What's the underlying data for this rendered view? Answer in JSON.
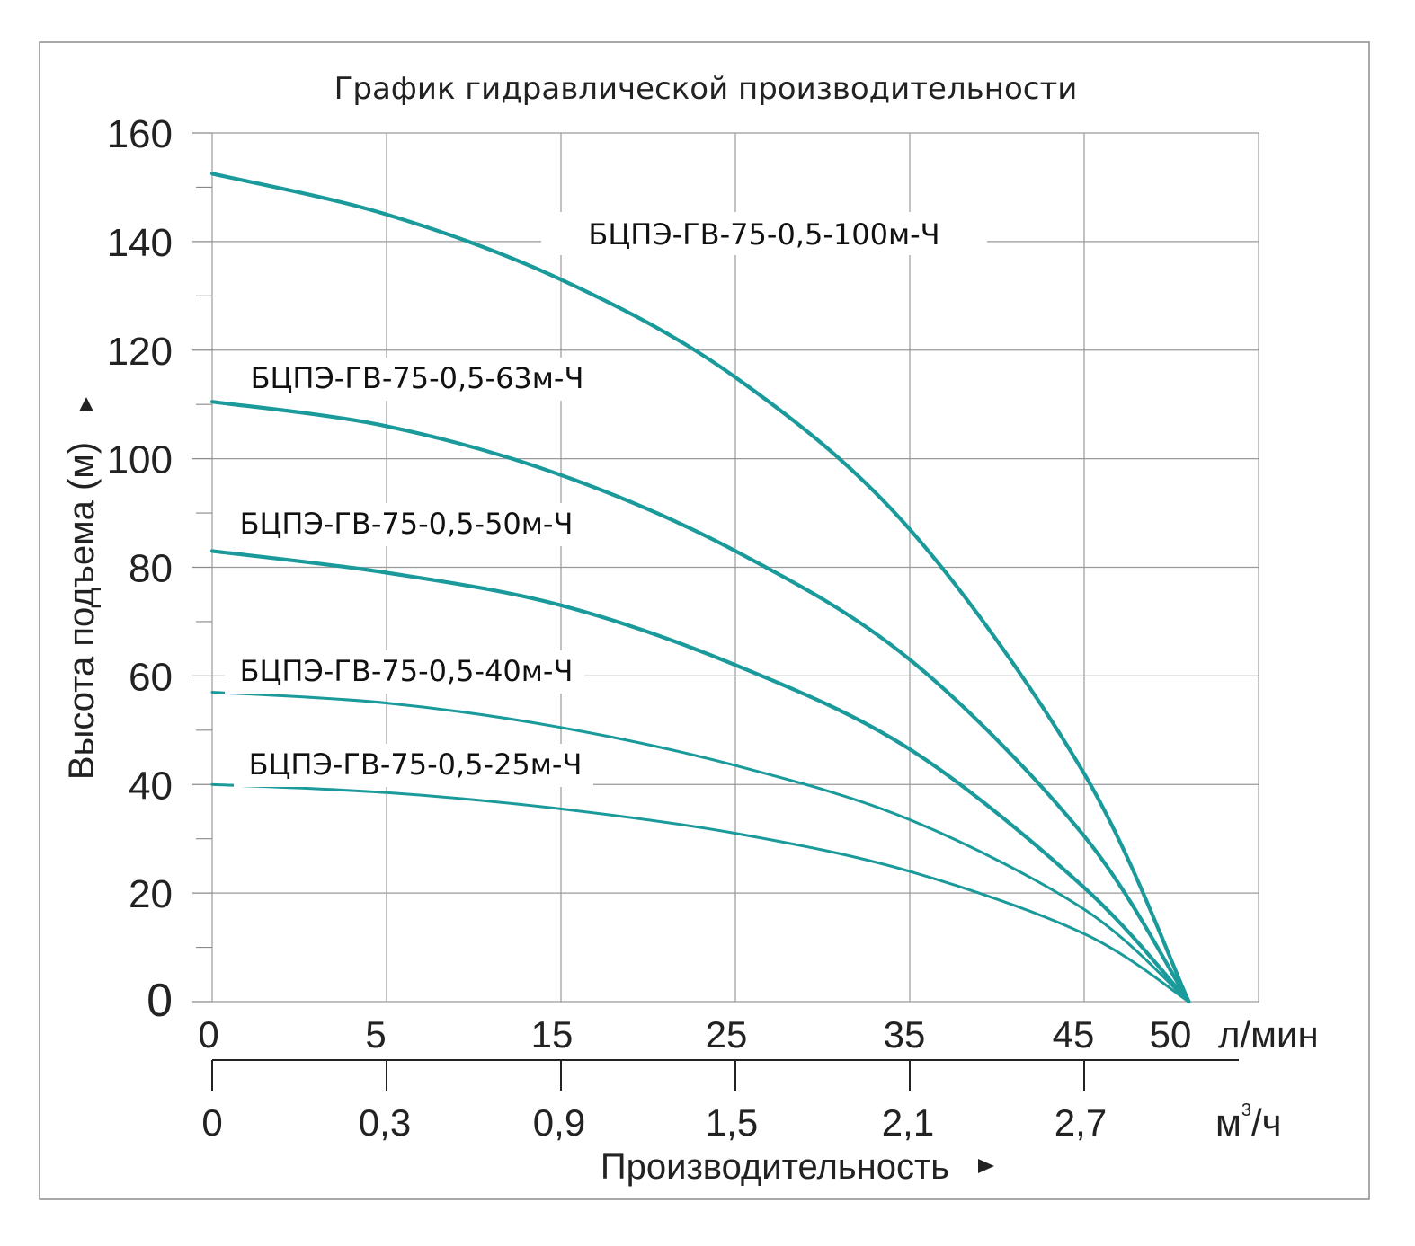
{
  "chart_data": {
    "type": "line",
    "title": "График гидравлической производительности",
    "ylabel": "Высота подъема (м)",
    "xlabel": "Производительность",
    "ylim": [
      0,
      160
    ],
    "y_ticks": [
      0,
      20,
      40,
      60,
      80,
      100,
      120,
      140,
      160
    ],
    "x_ticks_lmin": [
      "0",
      "5",
      "15",
      "25",
      "35",
      "45",
      "50"
    ],
    "x_unit_lmin": "л/мин",
    "x_ticks_m3h": [
      "0",
      "0,3",
      "0,9",
      "1,5",
      "2,1",
      "2,7"
    ],
    "x_unit_m3h_base": "м",
    "x_unit_m3h_sup": "3",
    "x_unit_m3h_tail": "/ч",
    "grid": true,
    "series_color": "#1a9a9a",
    "series": [
      {
        "name": "БЦПЭ-ГВ-75-0,5-100м-Ч",
        "x": [
          0,
          5,
          15,
          25,
          35,
          45,
          51
        ],
        "y": [
          152.5,
          145,
          133,
          115,
          87,
          42,
          0
        ]
      },
      {
        "name": "БЦПЭ-ГВ-75-0,5-63м-Ч",
        "x": [
          0,
          5,
          15,
          25,
          35,
          45,
          51
        ],
        "y": [
          110.5,
          106,
          97,
          83,
          63,
          30.5,
          0
        ]
      },
      {
        "name": "БЦПЭ-ГВ-75-0,5-50м-Ч",
        "x": [
          0,
          5,
          15,
          25,
          35,
          45,
          51
        ],
        "y": [
          83,
          79,
          73,
          62,
          46.5,
          21,
          0
        ]
      },
      {
        "name": "БЦПЭ-ГВ-75-0,5-40м-Ч",
        "x": [
          0,
          5,
          15,
          25,
          35,
          45,
          51
        ],
        "y": [
          57,
          55,
          50.5,
          43.5,
          33.5,
          17,
          0
        ]
      },
      {
        "name": "БЦПЭ-ГВ-75-0,5-25м-Ч",
        "x": [
          0,
          5,
          15,
          25,
          35,
          45,
          51
        ],
        "y": [
          40,
          38.5,
          35.5,
          31,
          24,
          12.5,
          0
        ]
      }
    ]
  }
}
